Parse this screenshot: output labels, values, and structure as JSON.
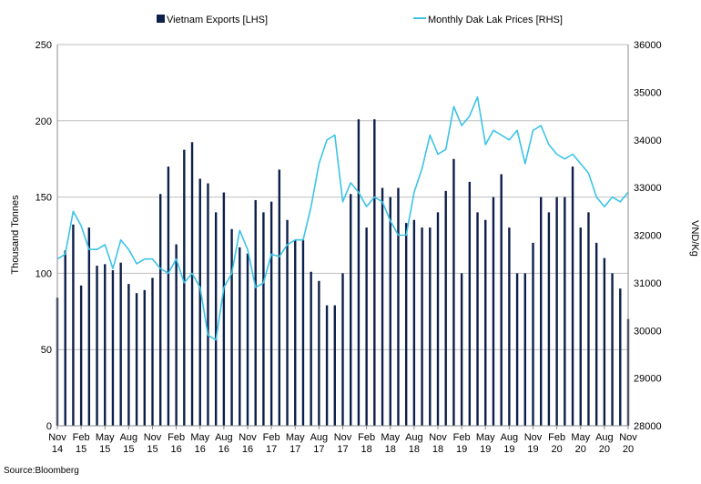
{
  "chart_data": {
    "type": "bar+line",
    "legend": {
      "bar_label": "Vietnam Exports [LHS]",
      "line_label": "Monthly Dak Lak Prices [RHS]",
      "placement": "top"
    },
    "ylabel_left": "Thousand Tonnes",
    "ylabel_right": "VND/Kg",
    "ylim_left": [
      0,
      250
    ],
    "ylim_right": [
      28000,
      36000
    ],
    "yticks_left": [
      0,
      50,
      100,
      150,
      200,
      250
    ],
    "yticks_right": [
      28000,
      29000,
      30000,
      31000,
      32000,
      33000,
      34000,
      35000,
      36000
    ],
    "xtick_labels": [
      [
        "Nov",
        "14"
      ],
      [
        "Feb",
        "15"
      ],
      [
        "May",
        "15"
      ],
      [
        "Aug",
        "15"
      ],
      [
        "Nov",
        "15"
      ],
      [
        "Feb",
        "16"
      ],
      [
        "May",
        "16"
      ],
      [
        "Aug",
        "16"
      ],
      [
        "Nov",
        "16"
      ],
      [
        "Feb",
        "17"
      ],
      [
        "May",
        "17"
      ],
      [
        "Aug",
        "17"
      ],
      [
        "Nov",
        "17"
      ],
      [
        "Feb",
        "18"
      ],
      [
        "May",
        "18"
      ],
      [
        "Aug",
        "18"
      ],
      [
        "Nov",
        "18"
      ],
      [
        "Feb",
        "19"
      ],
      [
        "May",
        "19"
      ],
      [
        "Aug",
        "19"
      ],
      [
        "Nov",
        "19"
      ],
      [
        "Feb",
        "20"
      ],
      [
        "May",
        "20"
      ],
      [
        "Aug",
        "20"
      ],
      [
        "Nov",
        "20"
      ]
    ],
    "grid": "horizontal",
    "series": [
      {
        "name": "Vietnam Exports [LHS]",
        "axis": "left",
        "kind": "bar",
        "color": "#0d1f4a",
        "values": [
          84,
          115,
          132,
          92,
          130,
          105,
          106,
          102,
          107,
          93,
          87,
          89,
          97,
          152,
          170,
          119,
          181,
          186,
          162,
          159,
          140,
          153,
          129,
          117,
          113,
          148,
          140,
          147,
          168,
          135,
          122,
          122,
          101,
          95,
          79,
          79,
          100,
          152,
          201,
          130,
          201,
          156,
          150,
          156,
          133,
          135,
          130,
          130,
          140,
          154,
          175,
          100,
          160,
          140,
          135,
          150,
          165,
          130,
          100,
          100,
          120,
          150,
          140,
          150,
          150,
          170,
          130,
          140,
          120,
          110,
          100,
          90,
          70
        ]
      },
      {
        "name": "Monthly Dak Lak Prices [RHS]",
        "axis": "right",
        "kind": "line",
        "color": "#3cc3e6",
        "values": [
          31500,
          31600,
          32500,
          32200,
          31700,
          31700,
          31800,
          31300,
          31900,
          31700,
          31400,
          31500,
          31500,
          31300,
          31200,
          31500,
          31000,
          31200,
          30900,
          29900,
          29800,
          30900,
          31200,
          32100,
          31700,
          30900,
          31000,
          31600,
          31550,
          31800,
          31900,
          31900,
          32600,
          33500,
          34000,
          34100,
          32700,
          33100,
          32900,
          32600,
          32800,
          32700,
          32300,
          32000,
          32000,
          32900,
          33400,
          34100,
          33700,
          33800,
          34700,
          34300,
          34500,
          34900,
          33900,
          34200,
          34100,
          34000,
          34200,
          33500,
          34200,
          34300,
          33900,
          33700,
          33600,
          33700,
          33500,
          33300,
          32800,
          32600,
          32800,
          32700,
          32900
        ]
      }
    ]
  },
  "source_text": "Source:Bloomberg"
}
